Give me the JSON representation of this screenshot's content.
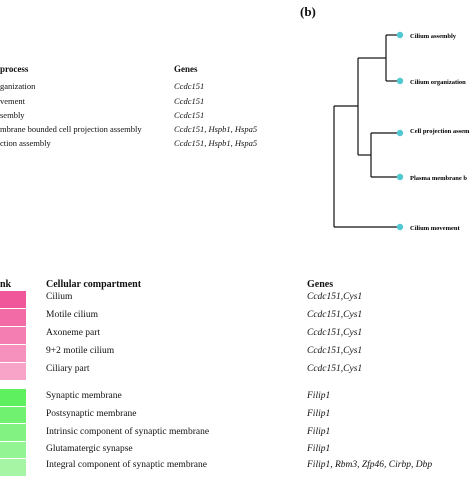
{
  "panel_b_label": "(b)",
  "table_a": {
    "header_process": "process",
    "header_genes": "Genes",
    "rows": [
      {
        "process": "ganization",
        "genes": "Ccdc151"
      },
      {
        "process": "vement",
        "genes": "Ccdc151"
      },
      {
        "process": "sembly",
        "genes": "Ccdc151"
      },
      {
        "process": "mbrane bounded cell projection assembly",
        "genes": "Ccdc151, Hspb1, Hspa5"
      },
      {
        "process": "ction assembly",
        "genes": "Ccdc151, Hspb1, Hspa5"
      }
    ]
  },
  "dendrogram": {
    "leaves": [
      {
        "label": "Cilium assembly"
      },
      {
        "label": "Cilium organization"
      },
      {
        "label": "Cell projection assem"
      },
      {
        "label": "Plasma membrane b"
      },
      {
        "label": "Cilium movement"
      }
    ],
    "node_color": "#4fc9cf"
  },
  "table_c": {
    "header_rank": "nk",
    "header_compartment": "Cellular compartment",
    "header_genes": "Genes",
    "group1_color_top": "#f0579a",
    "group1_color_bottom": "#f8a3c8",
    "group2_color_top": "#5ef05e",
    "group2_color_bottom": "#a5f5a5",
    "rows": [
      {
        "compartment": "Cilium",
        "genes": "Ccdc151,Cys1",
        "group": 1
      },
      {
        "compartment": "Motile cilium",
        "genes": "Ccdc151,Cys1",
        "group": 1
      },
      {
        "compartment": "Axoneme part",
        "genes": "Ccdc151,Cys1",
        "group": 1
      },
      {
        "compartment": "9+2 motile cilium",
        "genes": "Ccdc151,Cys1",
        "group": 1
      },
      {
        "compartment": "Ciliary part",
        "genes": "Ccdc151,Cys1",
        "group": 1
      },
      {
        "compartment": "Synaptic membrane",
        "genes": "Filip1",
        "group": 2
      },
      {
        "compartment": "Postsynaptic membrane",
        "genes": "Filip1",
        "group": 2
      },
      {
        "compartment": "Intrinsic component of synaptic membrane",
        "genes": "Filip1",
        "group": 2
      },
      {
        "compartment": "Glutamatergic synapse",
        "genes": "Filip1",
        "group": 2
      },
      {
        "compartment": "Integral component of synaptic membrane",
        "genes": "Filip1, Rbm3, Zfp46, Cirbp, Dbp",
        "group": 2
      }
    ]
  }
}
